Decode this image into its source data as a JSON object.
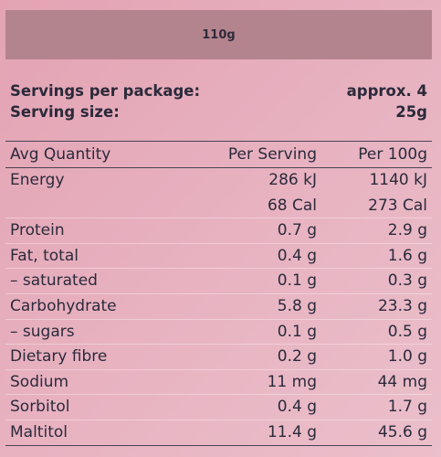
{
  "banner": {
    "weight": "110g"
  },
  "summary": {
    "servings_label": "Servings per package:",
    "servings_value": "approx. 4",
    "size_label": "Serving size:",
    "size_value": "25g"
  },
  "table": {
    "headers": {
      "name": "Avg Quantity",
      "per_serving": "Per Serving",
      "per_100g": "Per 100g"
    },
    "rows": [
      {
        "name": "Energy",
        "per_serving": "286 kJ",
        "per_100g": "1140 kJ"
      },
      {
        "name": "",
        "per_serving": "68 Cal",
        "per_100g": "273 Cal"
      },
      {
        "name": "Protein",
        "per_serving": "0.7 g",
        "per_100g": "2.9 g"
      },
      {
        "name": "Fat, total",
        "per_serving": "0.4 g",
        "per_100g": "1.6 g"
      },
      {
        "name": "– saturated",
        "per_serving": "0.1 g",
        "per_100g": "0.3 g"
      },
      {
        "name": "Carbohydrate",
        "per_serving": "5.8 g",
        "per_100g": "23.3 g"
      },
      {
        "name": "– sugars",
        "per_serving": "0.1 g",
        "per_100g": "0.5 g"
      },
      {
        "name": "Dietary fibre",
        "per_serving": "0.2 g",
        "per_100g": "1.0 g"
      },
      {
        "name": "Sodium",
        "per_serving": "11 mg",
        "per_100g": "44 mg"
      },
      {
        "name": "Sorbitol",
        "per_serving": "0.4 g",
        "per_100g": "1.7 g"
      },
      {
        "name": "Maltitol",
        "per_serving": "11.4 g",
        "per_100g": "45.6 g"
      }
    ]
  }
}
